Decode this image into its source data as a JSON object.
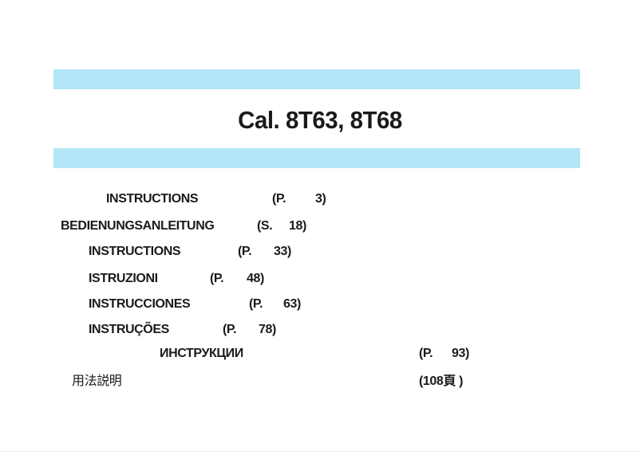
{
  "title": "Cal. 8T63, 8T68",
  "colors": {
    "band": "#b3e6f7",
    "text": "#1a1a1a"
  },
  "toc": [
    {
      "label": "INSTRUCTIONS",
      "prefix": "(P.",
      "page": "3)"
    },
    {
      "label": "BEDIENUNGSANLEITUNG",
      "prefix": "(S.",
      "page": "18)"
    },
    {
      "label": "INSTRUCTIONS",
      "prefix": "(P.",
      "page": "33)"
    },
    {
      "label": "ISTRUZIONI",
      "prefix": "(P.",
      "page": "48)"
    },
    {
      "label": "INSTRUCCIONES",
      "prefix": "(P.",
      "page": "63)"
    },
    {
      "label": "INSTRUÇÕES",
      "prefix": "(P.",
      "page": "78)"
    },
    {
      "label": "ИНСТРУКЦИИ",
      "prefix": "(P.",
      "page": "93)"
    },
    {
      "label": "用法説明",
      "prefix": "(108頁 )",
      "page": ""
    }
  ]
}
